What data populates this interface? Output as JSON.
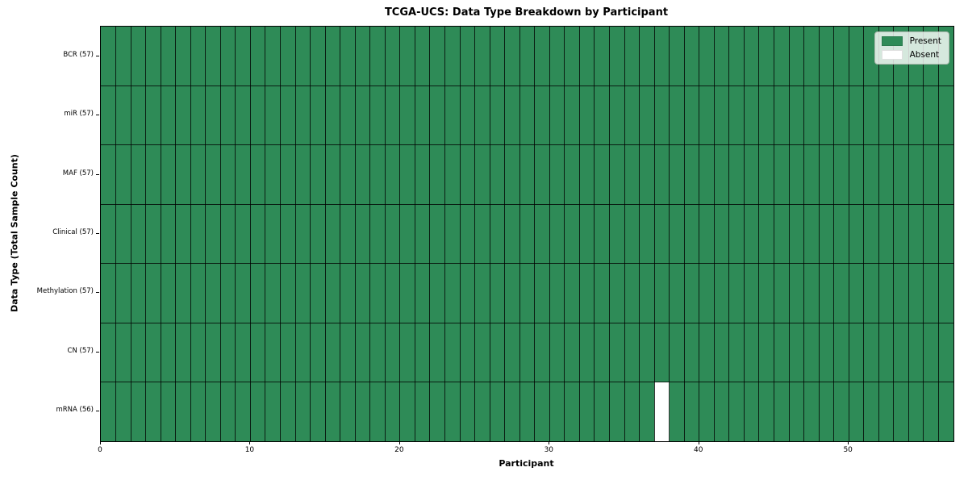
{
  "chart_data": {
    "type": "heatmap",
    "title": "TCGA-UCS: Data Type Breakdown by Participant",
    "xlabel": "Participant",
    "ylabel": "Data Type (Total Sample Count)",
    "rows": [
      "BCR (57)",
      "miR (57)",
      "MAF (57)",
      "Clinical (57)",
      "Methylation (57)",
      "CN (57)",
      "mRNA (56)"
    ],
    "row_present_counts": [
      57,
      57,
      57,
      57,
      57,
      57,
      56
    ],
    "n_participants": 57,
    "xlim": [
      0,
      57
    ],
    "x_ticks": [
      0,
      10,
      20,
      30,
      40,
      50
    ],
    "absent_cells": [
      {
        "row": "mRNA (56)",
        "row_index": 6,
        "participant_index": 37
      }
    ],
    "legend": [
      {
        "label": "Present",
        "color": "#2e8b57"
      },
      {
        "label": "Absent",
        "color": "#ffffff"
      }
    ],
    "colors": {
      "present": "#2e8b57",
      "absent": "#ffffff",
      "grid_line": "#000000"
    },
    "grid": true,
    "legend_position": "upper right"
  }
}
